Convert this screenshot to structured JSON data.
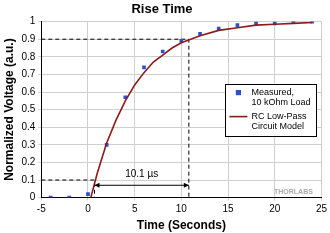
{
  "chart_data": {
    "type": "scatter",
    "title": "Rise Time",
    "xlabel": "Time (Seconds)",
    "ylabel": "Normalized Voltage (a.u.)",
    "xlim": [
      -5,
      25
    ],
    "xticks": [
      -5,
      0,
      5,
      10,
      15,
      20,
      25
    ],
    "ylim": [
      0,
      1
    ],
    "yticks": [
      0,
      0.1,
      0.2,
      0.3,
      0.4,
      0.5,
      0.6,
      0.7,
      0.8,
      0.9,
      1
    ],
    "grid": true,
    "legend": "right",
    "series": [
      {
        "name": "Measured, 10 kOhm Load",
        "type": "scatter",
        "marker": "square",
        "color": "#2e4fd0",
        "x": [
          -4,
          -2,
          0,
          2,
          4,
          6,
          8,
          10,
          12,
          14,
          16,
          18,
          20,
          22,
          24
        ],
        "values": [
          0.0,
          0.0,
          0.02,
          0.3,
          0.57,
          0.74,
          0.83,
          0.89,
          0.93,
          0.96,
          0.98,
          0.99,
          0.99,
          1.0,
          1.0
        ]
      },
      {
        "name": "RC Low-Pass Circuit Model",
        "type": "line",
        "color": "#8b1a1a",
        "x": [
          0.3,
          1,
          2,
          3,
          4,
          5,
          6,
          7,
          8,
          9,
          10,
          11,
          12,
          14,
          16,
          18,
          20,
          22,
          24
        ],
        "values": [
          0,
          0.14,
          0.31,
          0.44,
          0.55,
          0.64,
          0.71,
          0.77,
          0.81,
          0.85,
          0.88,
          0.9,
          0.92,
          0.95,
          0.965,
          0.98,
          0.985,
          0.99,
          0.995
        ]
      }
    ],
    "guides": [
      {
        "x": [
          -5,
          0.7,
          0.7
        ],
        "y": [
          0.1,
          0.1,
          0
        ],
        "line_style": "dashed"
      },
      {
        "x": [
          -5,
          10.8,
          10.8
        ],
        "y": [
          0.9,
          0.9,
          0
        ],
        "line_style": "dashed"
      }
    ],
    "arrows": [
      {
        "x": [
          0.7,
          10.8
        ],
        "y": [
          0.07,
          0.07
        ]
      }
    ],
    "annotations": [
      {
        "text": "10.1 µs",
        "x": 5.75,
        "y": 0.13
      },
      {
        "text": "THORLABS",
        "x": 22,
        "y": 0.03,
        "color": "#aaaaaa"
      }
    ]
  }
}
